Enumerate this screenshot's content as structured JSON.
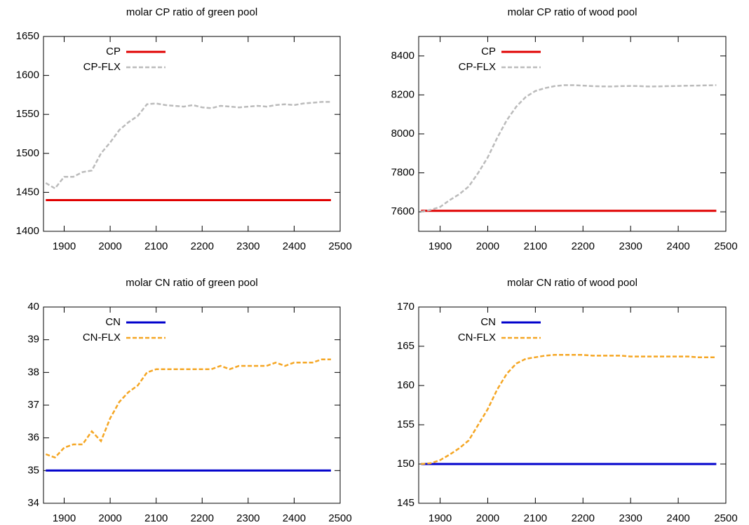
{
  "chart_data": [
    {
      "type": "line",
      "title": "molar CP ratio of green pool",
      "x": [
        1860,
        1880,
        1900,
        1920,
        1940,
        1960,
        1980,
        2000,
        2020,
        2040,
        2060,
        2080,
        2100,
        2120,
        2140,
        2160,
        2180,
        2200,
        2220,
        2240,
        2260,
        2280,
        2300,
        2320,
        2340,
        2360,
        2380,
        2400,
        2420,
        2440,
        2460,
        2480
      ],
      "series": [
        {
          "name": "CP",
          "color": "#e00000",
          "dashed": false,
          "values": [
            1440,
            1440,
            1440,
            1440,
            1440,
            1440,
            1440,
            1440,
            1440,
            1440,
            1440,
            1440,
            1440,
            1440,
            1440,
            1440,
            1440,
            1440,
            1440,
            1440,
            1440,
            1440,
            1440,
            1440,
            1440,
            1440,
            1440,
            1440,
            1440,
            1440,
            1440,
            1440
          ]
        },
        {
          "name": "CP-FLX",
          "color": "#bbbbbb",
          "dashed": true,
          "values": [
            1462,
            1455,
            1470,
            1470,
            1476,
            1478,
            1500,
            1514,
            1530,
            1540,
            1548,
            1563,
            1564,
            1562,
            1561,
            1560,
            1562,
            1559,
            1558,
            1561,
            1560,
            1559,
            1560,
            1561,
            1560,
            1562,
            1563,
            1562,
            1564,
            1565,
            1566,
            1566
          ]
        }
      ],
      "xlim": [
        1855,
        2500
      ],
      "xticks": [
        1900,
        2000,
        2100,
        2200,
        2300,
        2400,
        2500
      ],
      "ylim": [
        1400,
        1650
      ],
      "yticks": [
        1400,
        1450,
        1500,
        1550,
        1600,
        1650
      ],
      "legend": "upper left"
    },
    {
      "type": "line",
      "title": "molar CP ratio of wood pool",
      "x": [
        1860,
        1880,
        1900,
        1920,
        1940,
        1960,
        1980,
        2000,
        2020,
        2040,
        2060,
        2080,
        2100,
        2120,
        2140,
        2160,
        2180,
        2200,
        2220,
        2240,
        2260,
        2280,
        2300,
        2320,
        2340,
        2360,
        2380,
        2400,
        2420,
        2440,
        2460,
        2480
      ],
      "series": [
        {
          "name": "CP",
          "color": "#e00000",
          "dashed": false,
          "values": [
            7605,
            7605,
            7605,
            7605,
            7605,
            7605,
            7605,
            7605,
            7605,
            7605,
            7605,
            7605,
            7605,
            7605,
            7605,
            7605,
            7605,
            7605,
            7605,
            7605,
            7605,
            7605,
            7605,
            7605,
            7605,
            7605,
            7605,
            7605,
            7605,
            7605,
            7605,
            7605
          ]
        },
        {
          "name": "CP-FLX",
          "color": "#bbbbbb",
          "dashed": true,
          "values": [
            7600,
            7610,
            7625,
            7660,
            7690,
            7730,
            7800,
            7880,
            7980,
            8070,
            8140,
            8190,
            8220,
            8235,
            8245,
            8250,
            8250,
            8248,
            8245,
            8244,
            8243,
            8245,
            8246,
            8245,
            8243,
            8244,
            8245,
            8246,
            8247,
            8248,
            8249,
            8250
          ]
        }
      ],
      "xlim": [
        1855,
        2500
      ],
      "xticks": [
        1900,
        2000,
        2100,
        2200,
        2300,
        2400,
        2500
      ],
      "ylim": [
        7500,
        8500
      ],
      "yticks": [
        7600,
        7800,
        8000,
        8200,
        8400
      ],
      "legend": "upper left"
    },
    {
      "type": "line",
      "title": "molar CN ratio of green pool",
      "x": [
        1860,
        1880,
        1900,
        1920,
        1940,
        1960,
        1980,
        2000,
        2020,
        2040,
        2060,
        2080,
        2100,
        2120,
        2140,
        2160,
        2180,
        2200,
        2220,
        2240,
        2260,
        2280,
        2300,
        2320,
        2340,
        2360,
        2380,
        2400,
        2420,
        2440,
        2460,
        2480
      ],
      "series": [
        {
          "name": "CN",
          "color": "#0000cc",
          "dashed": false,
          "values": [
            35,
            35,
            35,
            35,
            35,
            35,
            35,
            35,
            35,
            35,
            35,
            35,
            35,
            35,
            35,
            35,
            35,
            35,
            35,
            35,
            35,
            35,
            35,
            35,
            35,
            35,
            35,
            35,
            35,
            35,
            35,
            35
          ]
        },
        {
          "name": "CN-FLX",
          "color": "#f5a623",
          "dashed": true,
          "values": [
            35.5,
            35.4,
            35.7,
            35.8,
            35.8,
            36.2,
            35.9,
            36.6,
            37.1,
            37.4,
            37.6,
            38.0,
            38.1,
            38.1,
            38.1,
            38.1,
            38.1,
            38.1,
            38.1,
            38.2,
            38.1,
            38.2,
            38.2,
            38.2,
            38.2,
            38.3,
            38.2,
            38.3,
            38.3,
            38.3,
            38.4,
            38.4
          ]
        }
      ],
      "xlim": [
        1855,
        2500
      ],
      "xticks": [
        1900,
        2000,
        2100,
        2200,
        2300,
        2400,
        2500
      ],
      "ylim": [
        34,
        40
      ],
      "yticks": [
        34,
        35,
        36,
        37,
        38,
        39,
        40
      ],
      "legend": "upper left"
    },
    {
      "type": "line",
      "title": "molar CN ratio of wood pool",
      "x": [
        1860,
        1880,
        1900,
        1920,
        1940,
        1960,
        1980,
        2000,
        2020,
        2040,
        2060,
        2080,
        2100,
        2120,
        2140,
        2160,
        2180,
        2200,
        2220,
        2240,
        2260,
        2280,
        2300,
        2320,
        2340,
        2360,
        2380,
        2400,
        2420,
        2440,
        2460,
        2480
      ],
      "series": [
        {
          "name": "CN",
          "color": "#0000cc",
          "dashed": false,
          "values": [
            150,
            150,
            150,
            150,
            150,
            150,
            150,
            150,
            150,
            150,
            150,
            150,
            150,
            150,
            150,
            150,
            150,
            150,
            150,
            150,
            150,
            150,
            150,
            150,
            150,
            150,
            150,
            150,
            150,
            150,
            150,
            150
          ]
        },
        {
          "name": "CN-FLX",
          "color": "#f5a623",
          "dashed": true,
          "values": [
            150,
            150.1,
            150.5,
            151.2,
            152.0,
            153.0,
            155.0,
            157.0,
            159.5,
            161.5,
            162.8,
            163.4,
            163.6,
            163.8,
            163.9,
            163.9,
            163.9,
            163.9,
            163.8,
            163.8,
            163.8,
            163.8,
            163.7,
            163.7,
            163.7,
            163.7,
            163.7,
            163.7,
            163.7,
            163.6,
            163.6,
            163.6
          ]
        }
      ],
      "xlim": [
        1855,
        2500
      ],
      "xticks": [
        1900,
        2000,
        2100,
        2200,
        2300,
        2400,
        2500
      ],
      "ylim": [
        145,
        170
      ],
      "yticks": [
        145,
        150,
        155,
        160,
        165,
        170
      ],
      "legend": "upper left"
    }
  ]
}
